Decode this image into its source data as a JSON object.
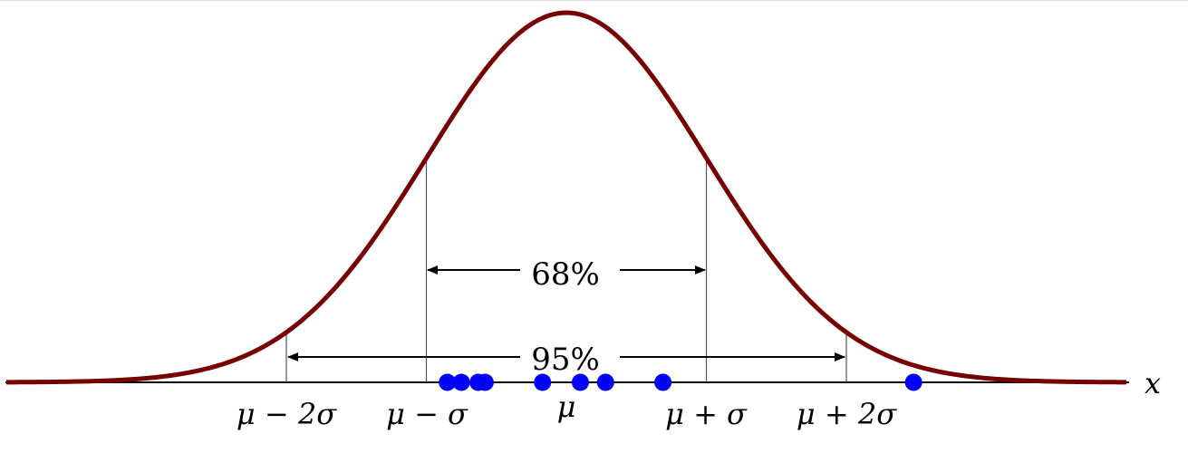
{
  "labels": {
    "x_axis": "x",
    "pct_inner": "68%",
    "pct_outer": "95%",
    "mu_minus_2sigma": "μ − 2σ",
    "mu_minus_sigma": "μ − σ",
    "mu": "μ",
    "mu_plus_sigma": "μ + σ",
    "mu_plus_2sigma": "μ + 2σ"
  },
  "distribution": {
    "mean": 0,
    "sd": 1,
    "x_range": [
      -4,
      4
    ]
  },
  "samples": [
    -0.85,
    -0.75,
    -0.63,
    -0.58,
    -0.17,
    0.1,
    0.28,
    0.69,
    2.48
  ],
  "colors": {
    "curve": "#770000",
    "points": "#0000ff",
    "axis": "#000000",
    "marker": "#555555"
  }
}
